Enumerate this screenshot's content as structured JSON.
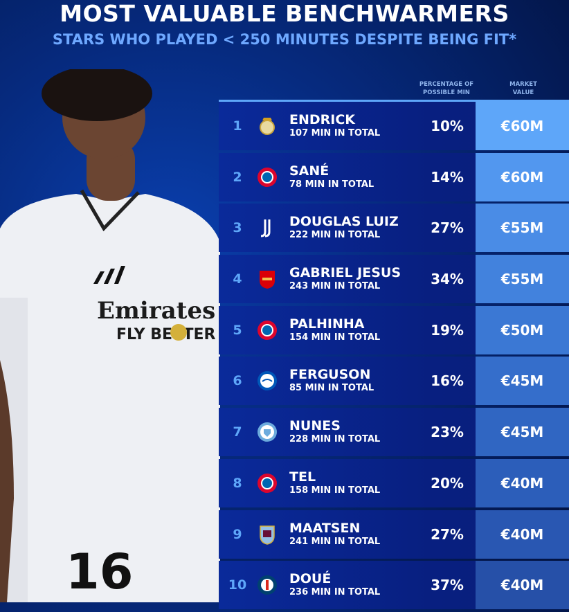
{
  "title": "MOST VALUABLE BENCHWARMERS",
  "subtitle": "STARS WHO PLAYED < 250 MINUTES DESPITE BEING FIT*",
  "columns": {
    "pct": "PERCENTAGE OF POSSIBLE MIN",
    "value": "MARKET VALUE"
  },
  "photo": {
    "shirt_sponsor": "Emirates",
    "sponsor_tagline": "FLY BETTER",
    "shirt_number": "16"
  },
  "rows": [
    {
      "rank": "1",
      "club_icon": "real-madrid-crest",
      "name": "ENDRICK",
      "minutes": "107 MIN IN TOTAL",
      "pct": "10%",
      "value": "€60M",
      "color": "#5ea6f9"
    },
    {
      "rank": "2",
      "club_icon": "bayern-crest",
      "name": "SANÉ",
      "minutes": "78 MIN IN TOTAL",
      "pct": "14%",
      "value": "€60M",
      "color": "#5297ef"
    },
    {
      "rank": "3",
      "club_icon": "juventus-crest",
      "name": "DOUGLAS LUIZ",
      "minutes": "222 MIN IN TOTAL",
      "pct": "27%",
      "value": "€55M",
      "color": "#4a8ce6"
    },
    {
      "rank": "4",
      "club_icon": "arsenal-crest",
      "name": "GABRIEL JESUS",
      "minutes": "243 MIN IN TOTAL",
      "pct": "34%",
      "value": "€55M",
      "color": "#4282dd"
    },
    {
      "rank": "5",
      "club_icon": "bayern-crest",
      "name": "PALHINHA",
      "minutes": "154 MIN IN TOTAL",
      "pct": "19%",
      "value": "€50M",
      "color": "#3b78d4"
    },
    {
      "rank": "6",
      "club_icon": "brighton-crest",
      "name": "FERGUSON",
      "minutes": "85 MIN IN TOTAL",
      "pct": "16%",
      "value": "€45M",
      "color": "#356ecb"
    },
    {
      "rank": "7",
      "club_icon": "man-city-crest",
      "name": "NUNES",
      "minutes": "228 MIN IN TOTAL",
      "pct": "23%",
      "value": "€45M",
      "color": "#3066c2"
    },
    {
      "rank": "8",
      "club_icon": "bayern-crest",
      "name": "TEL",
      "minutes": "158 MIN IN TOTAL",
      "pct": "20%",
      "value": "€40M",
      "color": "#2c5eba"
    },
    {
      "rank": "9",
      "club_icon": "aston-villa-crest",
      "name": "MAATSEN",
      "minutes": "241 MIN IN TOTAL",
      "pct": "27%",
      "value": "€40M",
      "color": "#2957b2"
    },
    {
      "rank": "10",
      "club_icon": "psg-crest",
      "name": "DOUÉ",
      "minutes": "236 MIN IN TOTAL",
      "pct": "37%",
      "value": "€40M",
      "color": "#2650a8"
    }
  ]
}
